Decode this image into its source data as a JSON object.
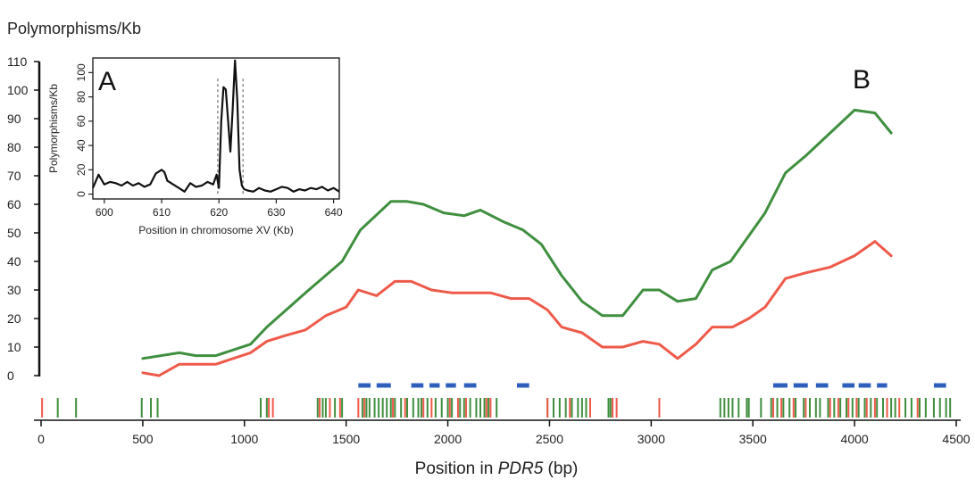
{
  "chart_data": [
    {
      "type": "line",
      "panel_label": "B",
      "ylabel": "Polymorphisms/Kb",
      "xlabel_prefix": "Position in ",
      "xlabel_gene": "PDR5",
      "xlabel_suffix": " (bp)",
      "xlim": [
        0,
        4500
      ],
      "ylim": [
        0,
        110
      ],
      "xticks": [
        0,
        500,
        1000,
        1500,
        2000,
        2500,
        3000,
        3500,
        4000,
        4500
      ],
      "yticks": [
        0,
        10,
        20,
        30,
        40,
        50,
        60,
        70,
        80,
        90,
        100,
        110
      ],
      "series": [
        {
          "color": "#3f8f3f",
          "x": [
            500,
            680,
            760,
            860,
            1030,
            1110,
            1300,
            1480,
            1570,
            1720,
            1800,
            1880,
            1980,
            2080,
            2160,
            2270,
            2370,
            2460,
            2560,
            2660,
            2760,
            2860,
            2960,
            3040,
            3130,
            3220,
            3300,
            3390,
            3480,
            3560,
            3660,
            3760,
            3880,
            4000,
            4100,
            4180
          ],
          "values": [
            6,
            8,
            7,
            7,
            11,
            17,
            29,
            40,
            51,
            61,
            61,
            60,
            57,
            56,
            58,
            54,
            51,
            46,
            35,
            26,
            21,
            21,
            30,
            30,
            26,
            27,
            37,
            40,
            49,
            57,
            71,
            77,
            85,
            93,
            92,
            85
          ]
        },
        {
          "color": "#ee5a4a",
          "x": [
            500,
            580,
            680,
            760,
            860,
            1030,
            1110,
            1200,
            1300,
            1400,
            1500,
            1560,
            1650,
            1740,
            1820,
            1920,
            2020,
            2110,
            2210,
            2310,
            2400,
            2490,
            2560,
            2660,
            2760,
            2860,
            2960,
            3040,
            3130,
            3220,
            3300,
            3400,
            3480,
            3560,
            3660,
            3760,
            3880,
            4000,
            4100,
            4180
          ],
          "values": [
            1,
            0,
            4,
            4,
            4,
            8,
            12,
            14,
            16,
            21,
            24,
            30,
            28,
            33,
            33,
            30,
            29,
            29,
            29,
            27,
            27,
            23,
            17,
            15,
            10,
            10,
            12,
            11,
            6,
            11,
            17,
            17,
            20,
            24,
            34,
            36,
            38,
            42,
            47,
            42
          ]
        }
      ],
      "blue_segments": [
        [
          1560,
          1620
        ],
        [
          1650,
          1720
        ],
        [
          1820,
          1880
        ],
        [
          1910,
          1960
        ],
        [
          1990,
          2040
        ],
        [
          2080,
          2140
        ],
        [
          2340,
          2400
        ],
        [
          3600,
          3670
        ],
        [
          3700,
          3770
        ],
        [
          3810,
          3870
        ],
        [
          3940,
          4000
        ],
        [
          4020,
          4080
        ],
        [
          4110,
          4160
        ],
        [
          4390,
          4450
        ]
      ],
      "tracks": {
        "green": [
          82,
          172,
          495,
          540,
          573,
          1080,
          1110,
          1360,
          1385,
          1400,
          1445,
          1480,
          1580,
          1600,
          1615,
          1640,
          1660,
          1680,
          1700,
          1720,
          1740,
          1770,
          1800,
          1830,
          1855,
          1870,
          1900,
          1940,
          1970,
          2000,
          2020,
          2060,
          2080,
          2110,
          2140,
          2160,
          2180,
          2200,
          2240,
          2490,
          2520,
          2550,
          2580,
          2610,
          2640,
          2660,
          2680,
          2790,
          2800,
          3340,
          3360,
          3380,
          3400,
          3430,
          3470,
          3480,
          3540,
          3590,
          3620,
          3650,
          3680,
          3710,
          3750,
          3780,
          3810,
          3830,
          3870,
          3900,
          3930,
          3960,
          3990,
          4020,
          4050,
          4080,
          4110,
          4140,
          4180,
          4200,
          4250,
          4280,
          4320,
          4350,
          4390,
          4420,
          4450,
          4470
        ],
        "red": [
          5,
          1120,
          1140,
          1370,
          1420,
          1470,
          1560,
          1590,
          1730,
          1790,
          1880,
          1920,
          2010,
          2050,
          2090,
          2190,
          2210,
          2490,
          2600,
          2700,
          2810,
          2830,
          3040,
          3600,
          3640,
          3700,
          3760,
          3880,
          3920,
          3970,
          4010,
          4060,
          4100,
          4160,
          4220,
          4310
        ]
      }
    },
    {
      "type": "line",
      "panel_label": "A",
      "ylabel": "Polymorphisms/Kb",
      "xlabel": "Position in chromosome XV (Kb)",
      "xlim": [
        598,
        641
      ],
      "ylim": [
        -4,
        112
      ],
      "xticks": [
        600,
        610,
        620,
        630,
        640
      ],
      "yticks": [
        0,
        20,
        40,
        60,
        80,
        100
      ],
      "vlines": [
        619.8,
        624.2
      ],
      "series": [
        {
          "color": "#111111",
          "x": [
            598,
            599,
            600,
            601,
            602,
            603,
            604,
            605,
            606,
            607,
            608,
            609,
            610,
            610.5,
            611,
            612,
            613,
            614,
            615,
            616,
            617,
            618,
            619,
            619.6,
            620,
            620.4,
            620.8,
            621.2,
            621.6,
            622,
            622.4,
            622.8,
            623.2,
            623.6,
            624,
            624.4,
            625,
            626,
            627,
            628,
            629,
            630,
            631,
            632,
            633,
            634,
            635,
            636,
            637,
            638,
            639,
            640,
            641
          ],
          "values": [
            5,
            16,
            8,
            10,
            9,
            7,
            10,
            7,
            9,
            6,
            8,
            17,
            20,
            18,
            11,
            8,
            5,
            2,
            9,
            6,
            7,
            10,
            8,
            16,
            5,
            60,
            88,
            86,
            60,
            35,
            70,
            110,
            78,
            20,
            7,
            4,
            3,
            2,
            5,
            3,
            2,
            4,
            6,
            5,
            2,
            4,
            3,
            5,
            4,
            6,
            3,
            5,
            2
          ]
        }
      ]
    }
  ]
}
